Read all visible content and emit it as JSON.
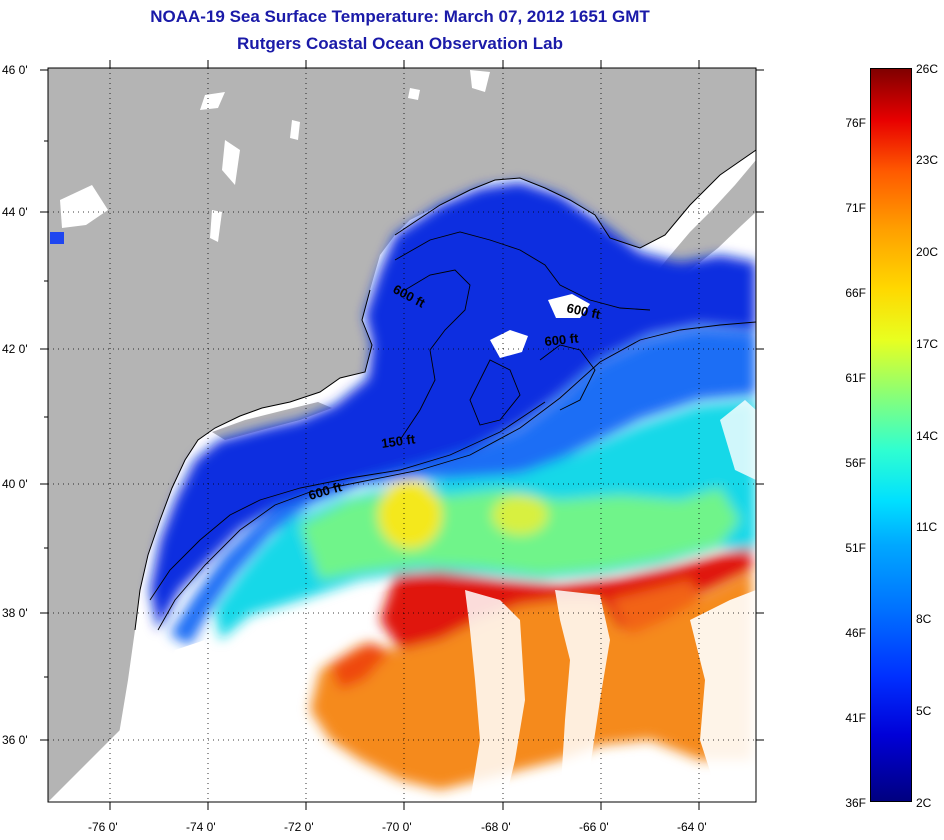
{
  "title": {
    "line1": "NOAA-19 Sea Surface Temperature:  March 07, 2012 1651 GMT",
    "line2": "Rutgers Coastal Ocean Observation Lab"
  },
  "map": {
    "lat_labels": [
      "46 0'",
      "44 0'",
      "42 0'",
      "40 0'",
      "38 0'",
      "36 0'"
    ],
    "lon_labels": [
      "-76 0'",
      "-74 0'",
      "-72 0'",
      "-70 0'",
      "-68 0'",
      "-66 0'",
      "-64 0'"
    ],
    "contour_labels": [
      "600 ft",
      "600 ft",
      "600 ft",
      "150 ft",
      "600 ft"
    ],
    "colors": {
      "land": "#b4b4b4",
      "no_data": "#ffffff",
      "grid": "#000000"
    }
  },
  "colorbar": {
    "fahrenheit": [
      "76F",
      "71F",
      "66F",
      "61F",
      "56F",
      "51F",
      "46F",
      "41F",
      "36F"
    ],
    "celsius": [
      "26C",
      "23C",
      "20C",
      "17C",
      "14C",
      "11C",
      "8C",
      "5C",
      "2C"
    ],
    "colors": [
      "#000080",
      "#0000d8",
      "#0070ff",
      "#00e0ff",
      "#90ff70",
      "#ffd800",
      "#ff5a00",
      "#800000"
    ]
  }
}
